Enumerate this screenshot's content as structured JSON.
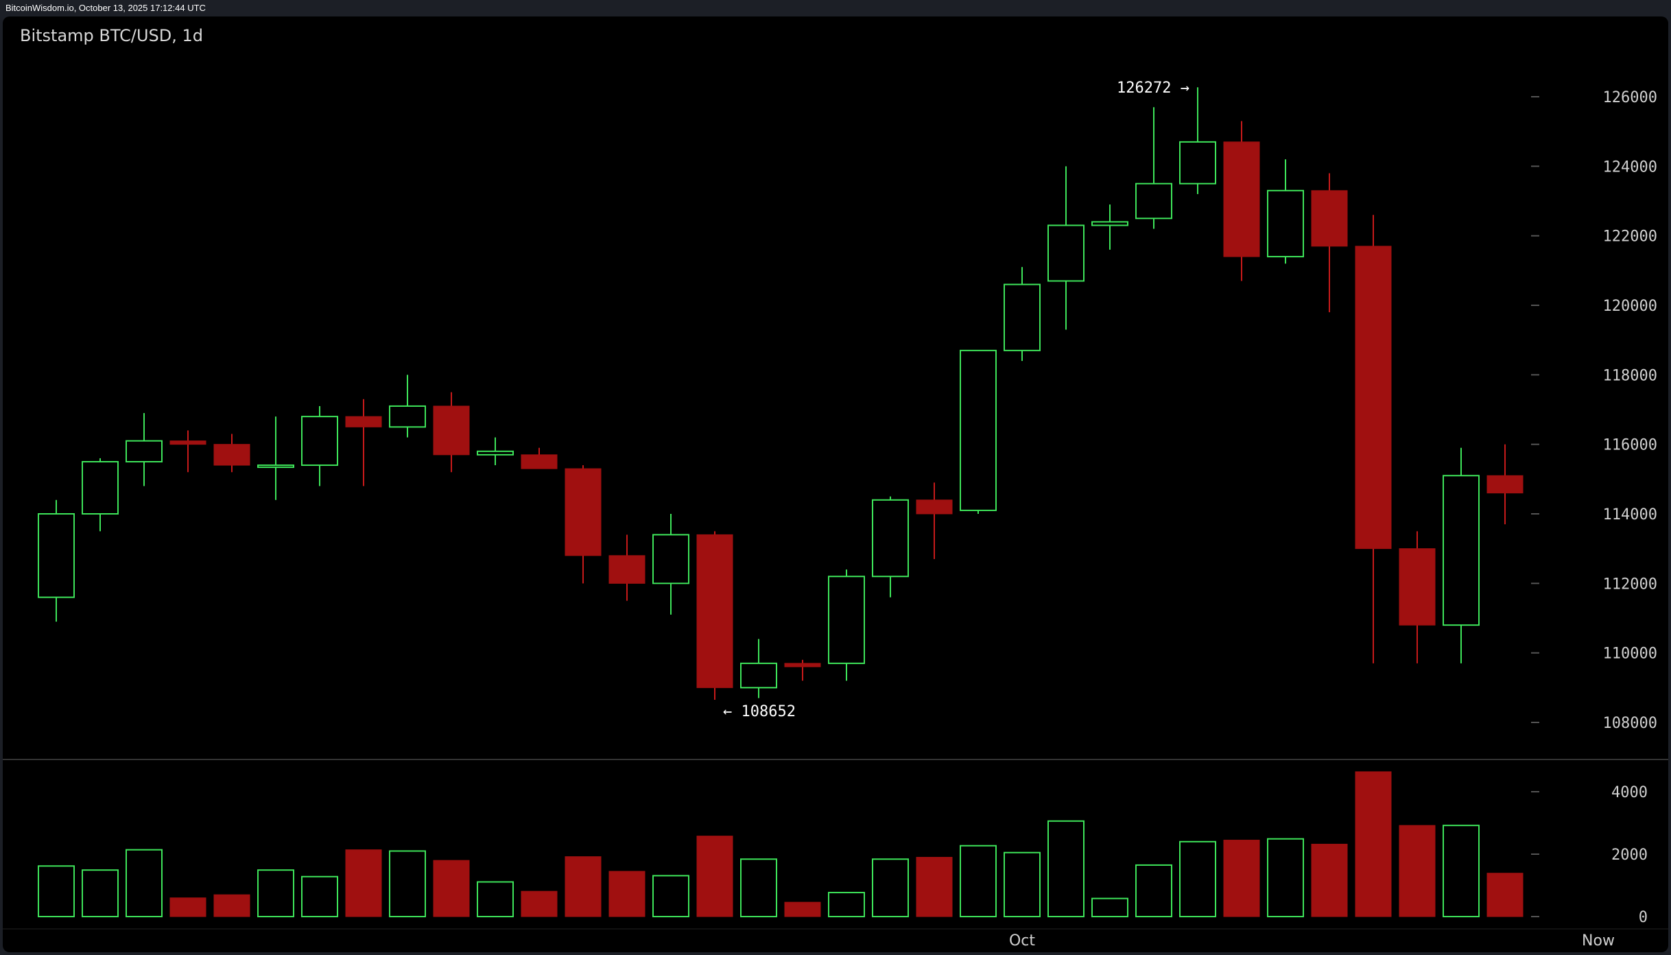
{
  "header": {
    "timestamp_text": "BitcoinWisdom.io, October 13, 2025 17:12:44 UTC"
  },
  "chart_data": {
    "type": "candlestick",
    "title": "Bitstamp BTC/USD, 1d",
    "colors": {
      "up": "#3ee55a",
      "down": "#a01010",
      "down_wick": "#c81a1a",
      "background": "#000000",
      "axis_text": "#d0d0d0",
      "separator": "#333333"
    },
    "price_axis": {
      "ylim": [
        107000,
        127000
      ],
      "ticks": [
        "126000",
        "124000",
        "122000",
        "120000",
        "118000",
        "116000",
        "114000",
        "112000",
        "110000",
        "108000"
      ]
    },
    "volume_axis": {
      "ylim": [
        0,
        5000
      ],
      "ticks": [
        "4000",
        "2000",
        "0"
      ]
    },
    "x_labels": [
      {
        "text": "Oct",
        "candle_index": 22
      },
      {
        "text": "Now",
        "candle_index": 35
      }
    ],
    "annotations": [
      {
        "text": "126272 →",
        "value": 126272,
        "candle_index": 26,
        "side": "left"
      },
      {
        "text": "← 108652",
        "value": 108652,
        "candle_index": 15,
        "side": "right"
      }
    ],
    "candles": [
      {
        "o": 111600,
        "h": 114400,
        "l": 110900,
        "c": 114000,
        "v": 1620
      },
      {
        "o": 114000,
        "h": 115600,
        "l": 113500,
        "c": 115500,
        "v": 1490
      },
      {
        "o": 115500,
        "h": 116900,
        "l": 114800,
        "c": 116100,
        "v": 2140
      },
      {
        "o": 116100,
        "h": 116400,
        "l": 115200,
        "c": 116000,
        "v": 600
      },
      {
        "o": 116000,
        "h": 116300,
        "l": 115200,
        "c": 115400,
        "v": 700
      },
      {
        "o": 115400,
        "h": 116800,
        "l": 114400,
        "c": 115400,
        "v": 1490
      },
      {
        "o": 115400,
        "h": 117100,
        "l": 114800,
        "c": 116800,
        "v": 1280
      },
      {
        "o": 116800,
        "h": 117300,
        "l": 114800,
        "c": 116500,
        "v": 2140
      },
      {
        "o": 116500,
        "h": 118000,
        "l": 116200,
        "c": 117100,
        "v": 2100
      },
      {
        "o": 117100,
        "h": 117500,
        "l": 115200,
        "c": 115700,
        "v": 1800
      },
      {
        "o": 115700,
        "h": 116200,
        "l": 115400,
        "c": 115800,
        "v": 1110
      },
      {
        "o": 115700,
        "h": 115900,
        "l": 115300,
        "c": 115300,
        "v": 810
      },
      {
        "o": 115300,
        "h": 115400,
        "l": 112000,
        "c": 112800,
        "v": 1920
      },
      {
        "o": 112800,
        "h": 113400,
        "l": 111500,
        "c": 112000,
        "v": 1450
      },
      {
        "o": 112000,
        "h": 114000,
        "l": 111100,
        "c": 113400,
        "v": 1310
      },
      {
        "o": 113400,
        "h": 113500,
        "l": 108652,
        "c": 109000,
        "v": 2580
      },
      {
        "o": 109000,
        "h": 110400,
        "l": 108700,
        "c": 109700,
        "v": 1840
      },
      {
        "o": 109700,
        "h": 109800,
        "l": 109200,
        "c": 109600,
        "v": 460
      },
      {
        "o": 109700,
        "h": 112400,
        "l": 109200,
        "c": 112200,
        "v": 770
      },
      {
        "o": 112200,
        "h": 114500,
        "l": 111600,
        "c": 114400,
        "v": 1840
      },
      {
        "o": 114400,
        "h": 114900,
        "l": 112700,
        "c": 114000,
        "v": 1900
      },
      {
        "o": 114100,
        "h": 118700,
        "l": 114000,
        "c": 118700,
        "v": 2270
      },
      {
        "o": 118700,
        "h": 121100,
        "l": 118400,
        "c": 120600,
        "v": 2050
      },
      {
        "o": 120700,
        "h": 124000,
        "l": 119300,
        "c": 122300,
        "v": 3060
      },
      {
        "o": 122300,
        "h": 122900,
        "l": 121600,
        "c": 122400,
        "v": 580
      },
      {
        "o": 122500,
        "h": 125700,
        "l": 122200,
        "c": 123500,
        "v": 1650
      },
      {
        "o": 123500,
        "h": 126272,
        "l": 123200,
        "c": 124700,
        "v": 2400
      },
      {
        "o": 124700,
        "h": 125300,
        "l": 120700,
        "c": 121400,
        "v": 2450
      },
      {
        "o": 121400,
        "h": 124200,
        "l": 121200,
        "c": 123300,
        "v": 2490
      },
      {
        "o": 123300,
        "h": 123800,
        "l": 119800,
        "c": 121700,
        "v": 2320
      },
      {
        "o": 121700,
        "h": 122600,
        "l": 109700,
        "c": 113000,
        "v": 4640
      },
      {
        "o": 113000,
        "h": 113500,
        "l": 109700,
        "c": 110800,
        "v": 2920
      },
      {
        "o": 110800,
        "h": 115900,
        "l": 109700,
        "c": 115100,
        "v": 2920
      },
      {
        "o": 115100,
        "h": 116000,
        "l": 113700,
        "c": 114600,
        "v": 1390
      }
    ]
  }
}
